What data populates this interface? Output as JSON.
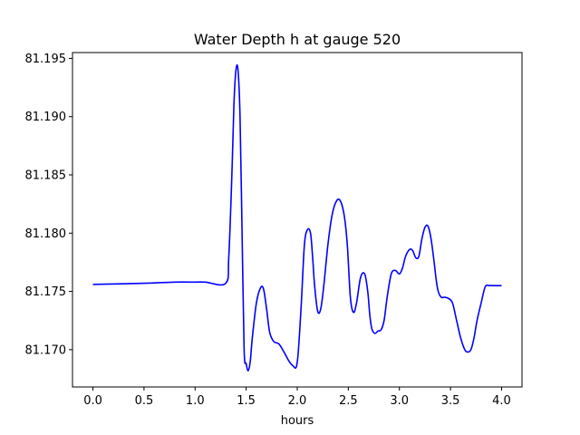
{
  "chart_data": {
    "type": "line",
    "title": "Water Depth h at gauge 520",
    "xlabel": "hours",
    "ylabel": "",
    "xlim": [
      -0.2,
      4.2
    ],
    "ylim": [
      81.1668,
      81.1955
    ],
    "xticks": [
      0.0,
      0.5,
      1.0,
      1.5,
      2.0,
      2.5,
      3.0,
      3.5,
      4.0
    ],
    "xtick_labels": [
      "0.0",
      "0.5",
      "1.0",
      "1.5",
      "2.0",
      "2.5",
      "3.0",
      "3.5",
      "4.0"
    ],
    "yticks": [
      81.17,
      81.175,
      81.18,
      81.185,
      81.19,
      81.195
    ],
    "ytick_labels": [
      "81.170",
      "81.175",
      "81.180",
      "81.185",
      "81.190",
      "81.195"
    ],
    "grid": false,
    "series": [
      {
        "color": "#0000ff",
        "x": [
          0.0,
          0.5,
          0.8,
          1.0,
          1.1,
          1.3,
          1.33,
          1.36,
          1.38,
          1.4,
          1.42,
          1.44,
          1.46,
          1.48,
          1.5,
          1.52,
          1.54,
          1.56,
          1.6,
          1.64,
          1.67,
          1.7,
          1.73,
          1.77,
          1.82,
          1.87,
          1.92,
          1.96,
          1.99,
          2.01,
          2.04,
          2.07,
          2.1,
          2.13,
          2.15,
          2.17,
          2.2,
          2.23,
          2.26,
          2.3,
          2.34,
          2.38,
          2.42,
          2.46,
          2.49,
          2.52,
          2.55,
          2.58,
          2.62,
          2.66,
          2.69,
          2.71,
          2.73,
          2.76,
          2.79,
          2.82,
          2.85,
          2.88,
          2.92,
          2.96,
          3.0,
          3.03,
          3.06,
          3.1,
          3.13,
          3.16,
          3.19,
          3.22,
          3.25,
          3.28,
          3.31,
          3.34,
          3.36,
          3.38,
          3.41,
          3.44,
          3.48,
          3.52,
          3.56,
          3.6,
          3.64,
          3.67,
          3.7,
          3.73,
          3.76,
          3.8,
          3.84,
          3.88,
          3.92,
          3.96,
          4.0
        ],
        "values": [
          81.1756,
          81.1757,
          81.1758,
          81.1758,
          81.1758,
          81.1757,
          81.178,
          81.185,
          81.191,
          81.194,
          81.194,
          81.19,
          81.18,
          81.17,
          81.1688,
          81.1682,
          81.169,
          81.171,
          81.174,
          81.1753,
          81.1752,
          81.1735,
          81.1715,
          81.1707,
          81.1705,
          81.1698,
          81.169,
          81.1686,
          81.1685,
          81.1698,
          81.174,
          81.179,
          81.1803,
          81.18,
          81.178,
          81.1755,
          81.1733,
          81.1735,
          81.1755,
          81.179,
          81.1815,
          81.1827,
          81.1828,
          81.1815,
          81.179,
          81.1745,
          81.1732,
          81.174,
          81.1762,
          81.1765,
          81.175,
          81.173,
          81.1718,
          81.1714,
          81.1716,
          81.1717,
          81.1725,
          81.1745,
          81.1765,
          81.1768,
          81.1765,
          81.177,
          81.178,
          81.1786,
          81.1785,
          81.1779,
          81.178,
          81.1795,
          81.1805,
          81.1806,
          81.1795,
          81.1775,
          81.176,
          81.175,
          81.1745,
          81.1745,
          81.1744,
          81.174,
          81.1725,
          81.171,
          81.17,
          81.1698,
          81.17,
          81.171,
          81.1725,
          81.174,
          81.1754,
          81.1755,
          81.1755,
          81.1755,
          81.1755
        ]
      }
    ]
  }
}
